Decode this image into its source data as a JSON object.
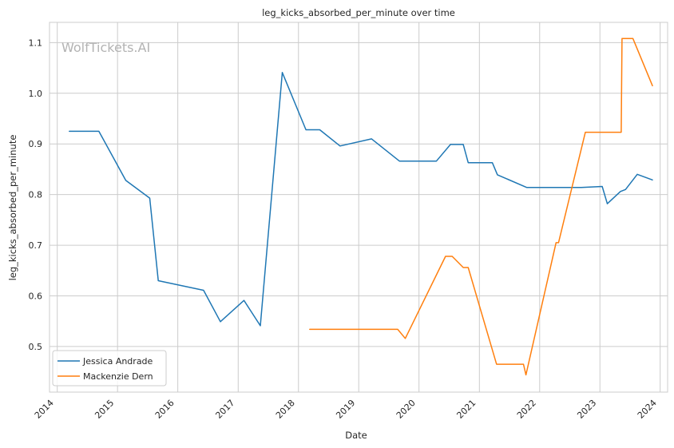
{
  "chart_data": {
    "type": "line",
    "title": "leg_kicks_absorbed_per_minute over time",
    "xlabel": "Date",
    "ylabel": "leg_kicks_absorbed_per_minute",
    "watermark": "WolfTickets.AI",
    "xlim": [
      "2013-11-15",
      "2024-02-15"
    ],
    "ylim": [
      0.41,
      1.14
    ],
    "x_ticks": [
      "2014",
      "2015",
      "2016",
      "2017",
      "2018",
      "2019",
      "2020",
      "2021",
      "2022",
      "2023",
      "2024"
    ],
    "y_ticks": [
      "0.5",
      "0.6",
      "0.7",
      "0.8",
      "0.9",
      "1.0",
      "1.1"
    ],
    "grid": true,
    "legend_position": "bottom-left",
    "series": [
      {
        "name": "Jessica Andrade",
        "color": "#1f77b4",
        "points": [
          [
            "2014-03-15",
            0.925
          ],
          [
            "2014-09-10",
            0.925
          ],
          [
            "2015-02-20",
            0.828
          ],
          [
            "2015-07-15",
            0.793
          ],
          [
            "2015-09-05",
            0.63
          ],
          [
            "2016-06-05",
            0.611
          ],
          [
            "2016-09-15",
            0.549
          ],
          [
            "2017-02-05",
            0.591
          ],
          [
            "2017-05-15",
            0.541
          ],
          [
            "2017-09-25",
            1.041
          ],
          [
            "2018-02-15",
            0.928
          ],
          [
            "2018-05-10",
            0.928
          ],
          [
            "2018-09-10",
            0.896
          ],
          [
            "2019-03-20",
            0.91
          ],
          [
            "2019-09-05",
            0.866
          ],
          [
            "2020-04-15",
            0.866
          ],
          [
            "2020-07-10",
            0.899
          ],
          [
            "2020-09-25",
            0.899
          ],
          [
            "2020-10-25",
            0.863
          ],
          [
            "2021-03-20",
            0.863
          ],
          [
            "2021-04-20",
            0.839
          ],
          [
            "2021-10-15",
            0.814
          ],
          [
            "2022-09-10",
            0.814
          ],
          [
            "2023-01-15",
            0.816
          ],
          [
            "2023-02-15",
            0.782
          ],
          [
            "2023-05-05",
            0.806
          ],
          [
            "2023-06-05",
            0.81
          ],
          [
            "2023-08-15",
            0.84
          ],
          [
            "2023-11-15",
            0.829
          ]
        ]
      },
      {
        "name": "Mackenzie Dern",
        "color": "#ff7f0e",
        "points": [
          [
            "2018-03-10",
            0.534
          ],
          [
            "2019-08-25",
            0.534
          ],
          [
            "2019-10-10",
            0.516
          ],
          [
            "2020-06-10",
            0.678
          ],
          [
            "2020-07-20",
            0.678
          ],
          [
            "2020-09-25",
            0.656
          ],
          [
            "2020-10-25",
            0.656
          ],
          [
            "2021-04-15",
            0.465
          ],
          [
            "2021-09-25",
            0.465
          ],
          [
            "2021-10-10",
            0.444
          ],
          [
            "2022-04-10",
            0.705
          ],
          [
            "2022-04-25",
            0.705
          ],
          [
            "2022-10-05",
            0.923
          ],
          [
            "2023-05-10",
            0.923
          ],
          [
            "2023-05-15",
            1.108
          ],
          [
            "2023-07-20",
            1.108
          ],
          [
            "2023-11-15",
            1.015
          ]
        ]
      }
    ]
  }
}
